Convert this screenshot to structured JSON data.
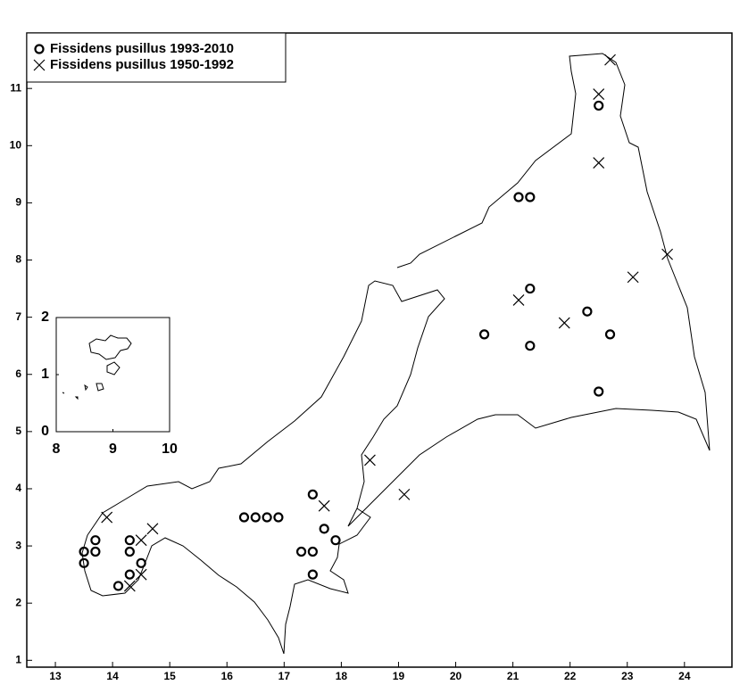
{
  "chart_data": [
    {
      "type": "scatter",
      "xlim": [
        12.5,
        24.83
      ],
      "ylim": [
        0.88,
        11.97
      ],
      "xticks": [
        13,
        14,
        15,
        16,
        17,
        18,
        19,
        20,
        21,
        22,
        23,
        24
      ],
      "yticks": [
        1,
        2,
        3,
        4,
        5,
        6,
        7,
        8,
        9,
        10,
        11
      ],
      "legend": "upper left",
      "series": [
        {
          "name": "Fissidens pusillus 1993-2010",
          "marker": "o",
          "color": "#000000",
          "x": [
            13.5,
            13.5,
            13.7,
            13.7,
            14.1,
            14.3,
            14.3,
            14.3,
            14.5,
            16.3,
            16.5,
            16.7,
            16.9,
            17.3,
            17.5,
            17.5,
            17.5,
            17.7,
            17.9,
            20.5,
            21.1,
            21.3,
            21.3,
            21.3,
            22.3,
            22.5,
            22.5,
            22.7
          ],
          "y": [
            2.9,
            2.7,
            3.1,
            2.9,
            2.3,
            3.1,
            2.9,
            2.5,
            2.7,
            3.5,
            3.5,
            3.5,
            3.5,
            2.9,
            2.9,
            2.5,
            3.9,
            3.3,
            3.1,
            6.7,
            9.1,
            9.1,
            7.5,
            6.5,
            7.1,
            5.7,
            10.7,
            6.7
          ]
        },
        {
          "name": "Fissidens pusillus 1950-1992",
          "marker": "x",
          "color": "#000000",
          "x": [
            13.9,
            14.3,
            14.5,
            14.5,
            14.7,
            17.7,
            18.5,
            19.1,
            21.1,
            21.9,
            22.5,
            22.5,
            22.7,
            23.1,
            23.7
          ],
          "y": [
            3.5,
            2.3,
            3.1,
            2.5,
            3.3,
            3.7,
            4.5,
            3.9,
            7.3,
            6.9,
            9.7,
            10.9,
            11.5,
            7.7,
            8.1
          ]
        }
      ]
    },
    {
      "type": "inset",
      "xlim": [
        8,
        10
      ],
      "ylim": [
        0,
        2
      ],
      "xticks": [
        8,
        9,
        10
      ],
      "yticks": [
        0,
        1,
        2
      ]
    }
  ]
}
